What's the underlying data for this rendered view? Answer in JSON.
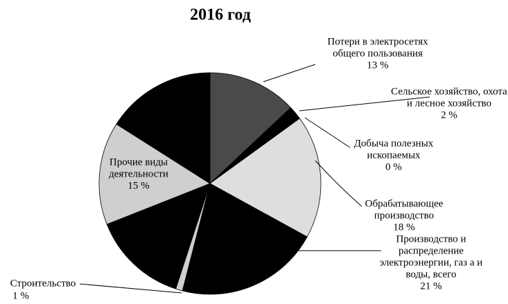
{
  "chart_data": {
    "type": "pie",
    "title": "2016 год",
    "categories": [
      "Потери в электросетях общего пользования",
      "Сельское хозяйство, охота и лесное хозяйство",
      "Добыча полезных ископаемых",
      "Обрабатывающее производство",
      "Производство и распределение электроэнергии, газ а и воды, всего",
      "Строительство",
      null,
      "Прочие виды деятельности",
      null
    ],
    "values": [
      13,
      2,
      0,
      18,
      21,
      1,
      14,
      15,
      16
    ],
    "value_labels": [
      "13 %",
      "2 %",
      "0 %",
      "18 %",
      "21 %",
      "1 %",
      null,
      "15 %",
      null
    ],
    "colors": [
      "#4a4a4a",
      "#000000",
      "#000000",
      "#dedede",
      "#000000",
      "#cfcfcf",
      "#000000",
      "#cfcfcf",
      "#000000"
    ]
  }
}
